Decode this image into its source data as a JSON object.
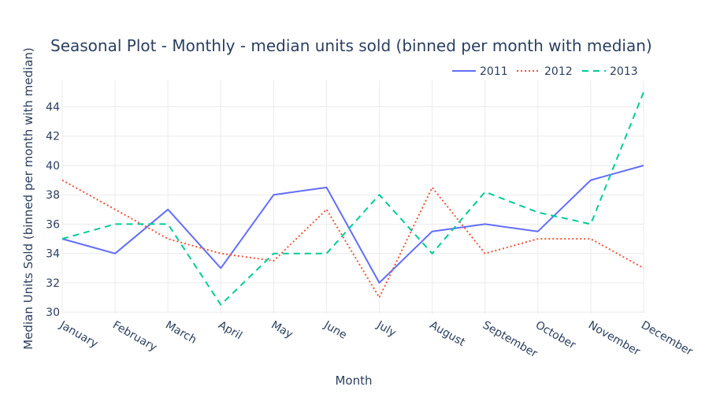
{
  "chart_data": {
    "type": "line",
    "title": "Seasonal Plot - Monthly - median units sold (binned per month with median)",
    "xlabel": "Month",
    "ylabel": "Median Units Sold (binned per month with median)",
    "categories": [
      "January",
      "February",
      "March",
      "April",
      "May",
      "June",
      "July",
      "August",
      "September",
      "October",
      "November",
      "December"
    ],
    "ylim": [
      29.9,
      45.8
    ],
    "yticks": [
      30,
      32,
      34,
      36,
      38,
      40,
      42,
      44
    ],
    "grid": true,
    "legend_position": "top-right",
    "series": [
      {
        "name": "2011",
        "color": "#636efa",
        "dash": "solid",
        "values": [
          35,
          34,
          37,
          33,
          38,
          38.5,
          32,
          35.5,
          36,
          35.5,
          39,
          40
        ]
      },
      {
        "name": "2012",
        "color": "#ef553b",
        "dash": "dot",
        "values": [
          39,
          37,
          35,
          34,
          33.5,
          37,
          31,
          38.5,
          34,
          35,
          35,
          33
        ]
      },
      {
        "name": "2013",
        "color": "#00cc96",
        "dash": "dash",
        "values": [
          35,
          36,
          36,
          30.5,
          34,
          34,
          38,
          34,
          38.2,
          36.8,
          36,
          45
        ]
      }
    ]
  }
}
